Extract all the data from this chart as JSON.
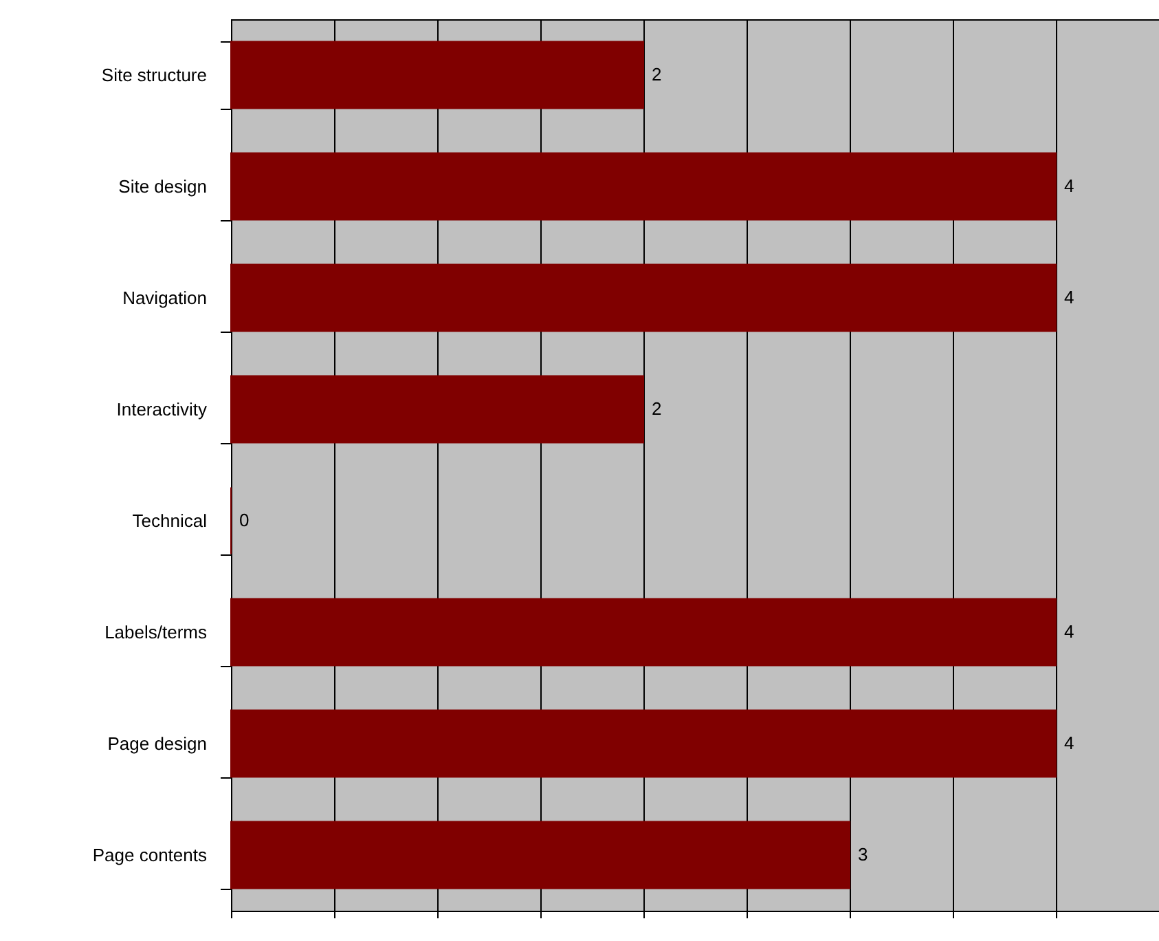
{
  "chart_data": {
    "type": "bar",
    "orientation": "horizontal",
    "categories": [
      "Site structure",
      "Site design",
      "Navigation",
      "Interactivity",
      "Technical",
      "Labels/terms",
      "Page design",
      "Page contents"
    ],
    "values": [
      2,
      4,
      4,
      2,
      0,
      4,
      4,
      3
    ],
    "color": "#800000",
    "xlim": [
      0,
      4.5
    ],
    "xticks": [
      {
        "value": 0,
        "label": null
      },
      {
        "value": 0.5,
        "label": null
      },
      {
        "value": 1,
        "label": null
      },
      {
        "value": 1.5,
        "label": null
      },
      {
        "value": 2,
        "label": null
      },
      {
        "value": 2.5,
        "label": null
      },
      {
        "value": 3,
        "label": null
      },
      {
        "value": 3.5,
        "label": null
      },
      {
        "value": 4,
        "label": null
      },
      {
        "value": 4.5,
        "label": null
      }
    ],
    "grid": "x",
    "data_labels": true,
    "tick_labels": "y"
  }
}
